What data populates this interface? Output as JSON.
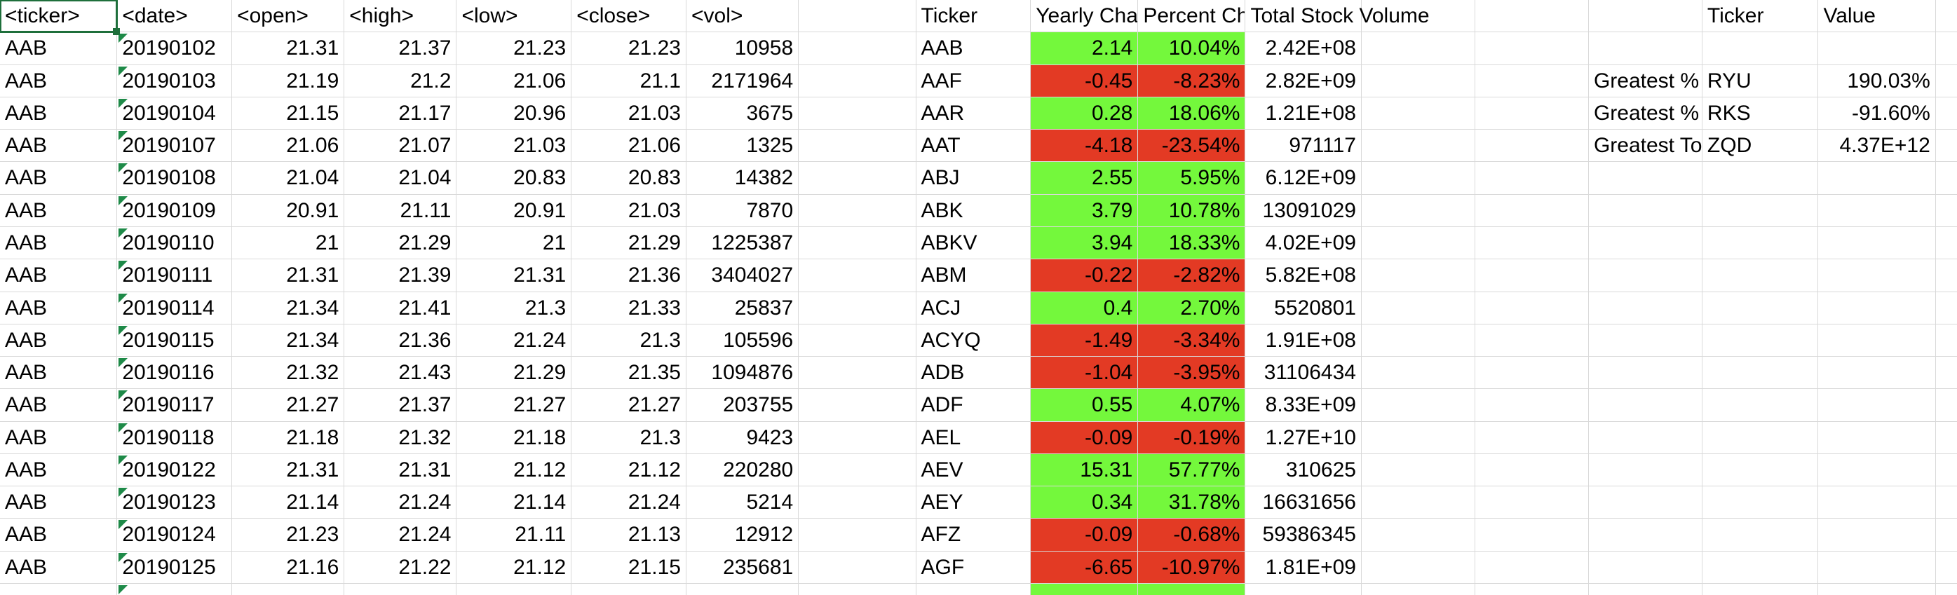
{
  "headers": {
    "raw": [
      "<ticker>",
      "<date>",
      "<open>",
      "<high>",
      "<low>",
      "<close>",
      "<vol>"
    ],
    "summary": [
      "Ticker",
      "Yearly Char",
      "Percent Ch",
      "Total Stock Volume"
    ],
    "greatest": [
      "Ticker",
      "Value"
    ]
  },
  "raw_rows": [
    [
      "AAB",
      "20190102",
      "21.31",
      "21.37",
      "21.23",
      "21.23",
      "10958"
    ],
    [
      "AAB",
      "20190103",
      "21.19",
      "21.2",
      "21.06",
      "21.1",
      "2171964"
    ],
    [
      "AAB",
      "20190104",
      "21.15",
      "21.17",
      "20.96",
      "21.03",
      "3675"
    ],
    [
      "AAB",
      "20190107",
      "21.06",
      "21.07",
      "21.03",
      "21.06",
      "1325"
    ],
    [
      "AAB",
      "20190108",
      "21.04",
      "21.04",
      "20.83",
      "20.83",
      "14382"
    ],
    [
      "AAB",
      "20190109",
      "20.91",
      "21.11",
      "20.91",
      "21.03",
      "7870"
    ],
    [
      "AAB",
      "20190110",
      "21",
      "21.29",
      "21",
      "21.29",
      "1225387"
    ],
    [
      "AAB",
      "20190111",
      "21.31",
      "21.39",
      "21.31",
      "21.36",
      "3404027"
    ],
    [
      "AAB",
      "20190114",
      "21.34",
      "21.41",
      "21.3",
      "21.33",
      "25837"
    ],
    [
      "AAB",
      "20190115",
      "21.34",
      "21.36",
      "21.24",
      "21.3",
      "105596"
    ],
    [
      "AAB",
      "20190116",
      "21.32",
      "21.43",
      "21.29",
      "21.35",
      "1094876"
    ],
    [
      "AAB",
      "20190117",
      "21.27",
      "21.37",
      "21.27",
      "21.27",
      "203755"
    ],
    [
      "AAB",
      "20190118",
      "21.18",
      "21.32",
      "21.18",
      "21.3",
      "9423"
    ],
    [
      "AAB",
      "20190122",
      "21.31",
      "21.31",
      "21.12",
      "21.12",
      "220280"
    ],
    [
      "AAB",
      "20190123",
      "21.14",
      "21.24",
      "21.14",
      "21.24",
      "5214"
    ],
    [
      "AAB",
      "20190124",
      "21.23",
      "21.24",
      "21.11",
      "21.13",
      "12912"
    ],
    [
      "AAB",
      "20190125",
      "21.16",
      "21.22",
      "21.12",
      "21.15",
      "235681"
    ]
  ],
  "summary_rows": [
    {
      "ticker": "AAB",
      "change": "2.14",
      "pct": "10.04%",
      "volume": "2.42E+08",
      "status": "positive"
    },
    {
      "ticker": "AAF",
      "change": "-0.45",
      "pct": "-8.23%",
      "volume": "2.82E+09",
      "status": "negative"
    },
    {
      "ticker": "AAR",
      "change": "0.28",
      "pct": "18.06%",
      "volume": "1.21E+08",
      "status": "positive"
    },
    {
      "ticker": "AAT",
      "change": "-4.18",
      "pct": "-23.54%",
      "volume": "971117",
      "status": "negative"
    },
    {
      "ticker": "ABJ",
      "change": "2.55",
      "pct": "5.95%",
      "volume": "6.12E+09",
      "status": "positive"
    },
    {
      "ticker": "ABK",
      "change": "3.79",
      "pct": "10.78%",
      "volume": "13091029",
      "status": "positive"
    },
    {
      "ticker": "ABKV",
      "change": "3.94",
      "pct": "18.33%",
      "volume": "4.02E+09",
      "status": "positive"
    },
    {
      "ticker": "ABM",
      "change": "-0.22",
      "pct": "-2.82%",
      "volume": "5.82E+08",
      "status": "negative"
    },
    {
      "ticker": "ACJ",
      "change": "0.4",
      "pct": "2.70%",
      "volume": "5520801",
      "status": "positive"
    },
    {
      "ticker": "ACYQ",
      "change": "-1.49",
      "pct": "-3.34%",
      "volume": "1.91E+08",
      "status": "negative"
    },
    {
      "ticker": "ADB",
      "change": "-1.04",
      "pct": "-3.95%",
      "volume": "31106434",
      "status": "negative"
    },
    {
      "ticker": "ADF",
      "change": "0.55",
      "pct": "4.07%",
      "volume": "8.33E+09",
      "status": "positive"
    },
    {
      "ticker": "AEL",
      "change": "-0.09",
      "pct": "-0.19%",
      "volume": "1.27E+10",
      "status": "negative"
    },
    {
      "ticker": "AEV",
      "change": "15.31",
      "pct": "57.77%",
      "volume": "310625",
      "status": "positive"
    },
    {
      "ticker": "AEY",
      "change": "0.34",
      "pct": "31.78%",
      "volume": "16631656",
      "status": "positive"
    },
    {
      "ticker": "AFZ",
      "change": "-0.09",
      "pct": "-0.68%",
      "volume": "59386345",
      "status": "negative"
    },
    {
      "ticker": "AGF",
      "change": "-6.65",
      "pct": "-10.97%",
      "volume": "1.81E+09",
      "status": "negative"
    }
  ],
  "greatest_rows": [
    {
      "label": "Greatest %",
      "ticker": "RYU",
      "value": "190.03%"
    },
    {
      "label": "Greatest %",
      "ticker": "RKS",
      "value": "-91.60%"
    },
    {
      "label": "Greatest To",
      "ticker": "ZQD",
      "value": "4.37E+12"
    }
  ],
  "colors": {
    "positive": "#74f83c",
    "negative": "#e33a24",
    "selection": "#1e6f3b",
    "gridline": "#d9d9d9"
  }
}
